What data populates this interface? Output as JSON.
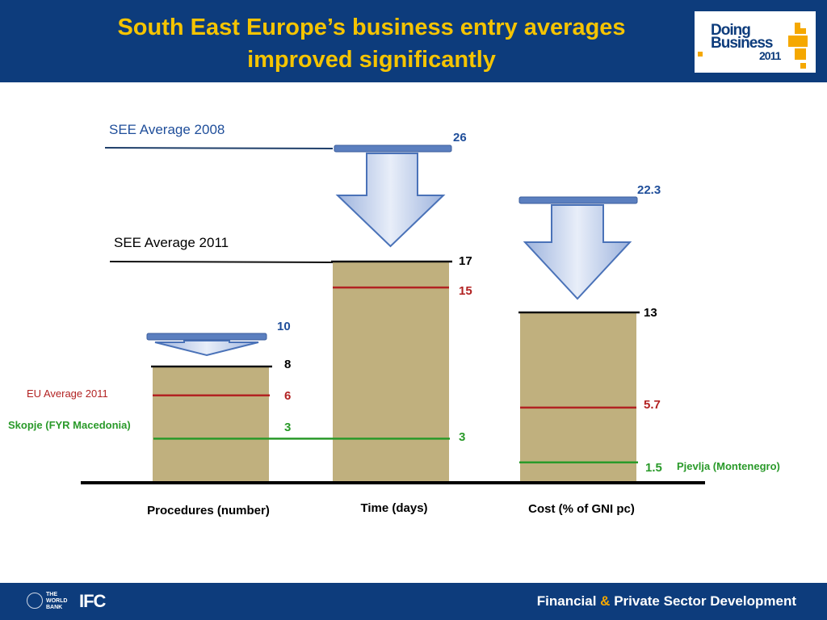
{
  "header": {
    "title_line1": "South East Europe’s business entry averages",
    "title_line2": "improved significantly",
    "logo": {
      "line1": "Doing",
      "line2": "Business",
      "year": "2011"
    }
  },
  "footer": {
    "org1_text": "THE WORLD BANK",
    "org2": "IFC",
    "right_text_1": "Financial",
    "right_amp": "&",
    "right_text_2": "Private Sector Development"
  },
  "chart_data": {
    "type": "bar",
    "categories": [
      "Procedures (number)",
      "Time (days)",
      "Cost (% of GNI pc)"
    ],
    "see_avg_2011": [
      8,
      17,
      13
    ],
    "see_avg_2008": [
      10,
      26,
      22.3
    ],
    "eu_avg_2011": [
      6,
      15,
      5.7
    ],
    "best_regional": [
      3,
      3,
      1.5
    ],
    "labels": {
      "see_2008": "SEE Average 2008",
      "see_2011": "SEE Average 2011",
      "eu_2011": "EU Average 2011",
      "best_left": "Skopje (FYR Macedonia)",
      "best_right": "Pjevlja (Montenegro)"
    },
    "value_labels": {
      "see_2011": [
        "8",
        "17",
        "13"
      ],
      "see_2008": [
        "10",
        "26",
        "22.3"
      ],
      "eu_2011": [
        "6",
        "15",
        "5.7"
      ],
      "best": [
        "3",
        "3",
        "1.5"
      ]
    },
    "colors": {
      "bar": "#c0b07e",
      "bar_top": "#111111",
      "eu_line": "#b22222",
      "best_line": "#2a9a2a",
      "see2008_value": "#1f4e9a",
      "arrow_fill_light": "#e8eef9",
      "arrow_fill_dark": "#9db3dd",
      "arrow_stroke": "#4a72b8",
      "title": "#f5c400",
      "header_bg": "#0d3c7c"
    }
  }
}
